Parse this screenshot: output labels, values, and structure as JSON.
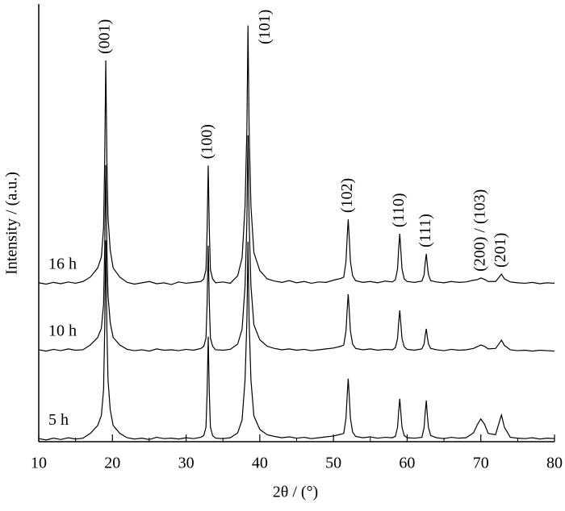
{
  "chart_data": {
    "type": "line",
    "xlabel": "2θ / (°)",
    "ylabel": "Intensity / (a.u.)",
    "xlim": [
      10,
      80
    ],
    "xticks": [
      10,
      20,
      30,
      40,
      50,
      60,
      70,
      80
    ],
    "xminor": [
      15,
      25,
      35,
      45,
      55,
      65,
      75
    ],
    "ylim": [
      0,
      100
    ],
    "x": [
      10,
      11,
      12,
      13,
      14,
      15,
      16,
      17,
      18,
      18.5,
      18.8,
      18.95,
      19.1,
      19.25,
      19.4,
      19.7,
      20.1,
      21,
      22,
      23,
      24,
      25,
      26,
      27,
      28,
      29,
      30,
      31,
      32,
      32.4,
      32.7,
      32.85,
      33.0,
      33.15,
      33.3,
      33.6,
      34,
      35,
      36,
      37,
      37.6,
      38.0,
      38.25,
      38.4,
      38.55,
      38.8,
      39.2,
      40,
      41,
      42,
      43,
      44,
      45,
      46,
      47,
      48,
      49,
      50,
      51,
      51.4,
      51.7,
      51.85,
      52.0,
      52.15,
      52.3,
      52.6,
      53,
      54,
      55,
      56,
      57,
      58,
      58.4,
      58.7,
      58.85,
      59.0,
      59.15,
      59.3,
      59.6,
      60,
      61,
      62,
      62.3,
      62.45,
      62.6,
      62.75,
      62.9,
      63.2,
      64,
      65,
      66,
      67,
      68,
      69,
      69.5,
      70,
      70.5,
      71,
      72,
      72.4,
      72.8,
      73.2,
      74,
      75,
      76,
      77,
      78,
      79,
      80
    ],
    "series": [
      {
        "name": "16 h",
        "color": "#000000",
        "values": [
          36.3,
          36.0,
          36.4,
          36.1,
          36.5,
          36.2,
          36.6,
          37.6,
          39.7,
          42.2,
          48.9,
          64.1,
          87.1,
          64.1,
          51.4,
          43.8,
          39.7,
          37.6,
          36.4,
          36.0,
          36.3,
          36.6,
          36.1,
          36.3,
          35.9,
          36.5,
          36.2,
          36.4,
          36.6,
          37.2,
          39.3,
          48.3,
          63.1,
          48.3,
          39.3,
          37.2,
          36.3,
          36.5,
          36.2,
          37.9,
          42.0,
          53.8,
          71.5,
          95.1,
          71.5,
          53.8,
          43.2,
          39.1,
          37.2,
          36.7,
          36.4,
          36.8,
          36.3,
          36.6,
          36.2,
          36.5,
          36.4,
          36.9,
          37.3,
          37.6,
          41.2,
          46.4,
          50.8,
          46.4,
          41.2,
          37.9,
          36.8,
          36.4,
          36.6,
          36.3,
          36.7,
          36.5,
          37.0,
          39.5,
          44.1,
          47.5,
          43.5,
          39.5,
          37.2,
          36.6,
          36.4,
          36.7,
          38.1,
          40.9,
          42.9,
          40.2,
          38.1,
          36.8,
          36.5,
          36.3,
          36.6,
          36.4,
          36.5,
          36.9,
          37.0,
          37.4,
          37.1,
          36.6,
          36.6,
          37.4,
          38.3,
          37.2,
          36.5,
          36.3,
          36.2,
          36.4,
          36.1,
          36.3,
          36.2
        ]
      },
      {
        "name": "10 h",
        "color": "#000000",
        "values": [
          21.0,
          20.7,
          21.1,
          20.8,
          21.2,
          20.9,
          21.0,
          22.1,
          23.8,
          25.9,
          31.4,
          44.1,
          63.2,
          44.1,
          33.5,
          27.2,
          23.8,
          22.1,
          21.1,
          20.8,
          21.0,
          20.7,
          21.2,
          20.9,
          21.0,
          20.8,
          21.1,
          20.9,
          21.3,
          21.8,
          23.7,
          31.6,
          44.8,
          31.6,
          23.7,
          21.8,
          21.0,
          20.9,
          21.1,
          22.3,
          25.7,
          35.6,
          50.3,
          70.0,
          50.3,
          35.6,
          26.7,
          23.3,
          21.8,
          21.3,
          21.0,
          21.2,
          20.9,
          21.1,
          20.8,
          21.0,
          21.2,
          21.4,
          21.8,
          22.1,
          25.3,
          29.8,
          33.7,
          29.8,
          25.3,
          22.3,
          21.3,
          21.0,
          21.2,
          20.9,
          21.1,
          21.0,
          21.5,
          23.6,
          27.2,
          30.0,
          26.8,
          23.6,
          21.7,
          21.1,
          20.9,
          21.2,
          22.3,
          24.3,
          25.8,
          23.8,
          22.3,
          21.3,
          21.0,
          20.8,
          21.1,
          20.9,
          21.0,
          21.3,
          21.7,
          22.1,
          21.8,
          21.2,
          21.3,
          22.2,
          23.2,
          22.0,
          21.0,
          20.8,
          20.9,
          20.7,
          20.9,
          20.8,
          20.7
        ]
      },
      {
        "name": "5 h",
        "color": "#000000",
        "values": [
          0.7,
          0.4,
          0.8,
          0.5,
          0.9,
          0.6,
          0.8,
          1.9,
          3.7,
          6.0,
          11.9,
          25.5,
          46.0,
          25.5,
          14.2,
          7.3,
          3.7,
          1.9,
          0.9,
          0.6,
          0.8,
          0.5,
          1.0,
          0.7,
          0.8,
          0.6,
          0.9,
          0.7,
          1.0,
          1.4,
          3.3,
          11.1,
          24.0,
          11.1,
          3.3,
          1.4,
          0.8,
          0.7,
          0.9,
          2.0,
          5.0,
          14.1,
          27.6,
          45.7,
          27.6,
          14.1,
          5.9,
          2.8,
          1.6,
          1.2,
          0.9,
          1.1,
          0.8,
          1.0,
          0.7,
          0.9,
          1.1,
          1.3,
          1.7,
          1.9,
          5.4,
          10.2,
          14.4,
          10.2,
          5.4,
          2.2,
          1.2,
          0.9,
          1.1,
          0.8,
          1.0,
          0.9,
          1.2,
          3.3,
          7.0,
          9.8,
          6.5,
          3.3,
          1.4,
          0.9,
          0.8,
          1.0,
          3.2,
          6.7,
          9.4,
          5.8,
          3.2,
          1.4,
          0.9,
          0.7,
          1.0,
          0.8,
          0.9,
          2.0,
          3.8,
          5.2,
          4.0,
          1.9,
          1.6,
          3.9,
          6.1,
          3.3,
          1.0,
          0.8,
          0.7,
          0.9,
          0.6,
          0.8,
          0.7
        ]
      }
    ],
    "annotations": [
      {
        "text": "(001)",
        "x": 19.1
      },
      {
        "text": "(100)",
        "x": 33.0
      },
      {
        "text": "(101)",
        "x": 38.4
      },
      {
        "text": "(102)",
        "x": 52.0
      },
      {
        "text": "(110)",
        "x": 59.0
      },
      {
        "text": "(111)",
        "x": 62.6
      },
      {
        "text": "(200) / (103)",
        "x": 70.0
      },
      {
        "text": "(201)",
        "x": 72.8
      }
    ]
  }
}
